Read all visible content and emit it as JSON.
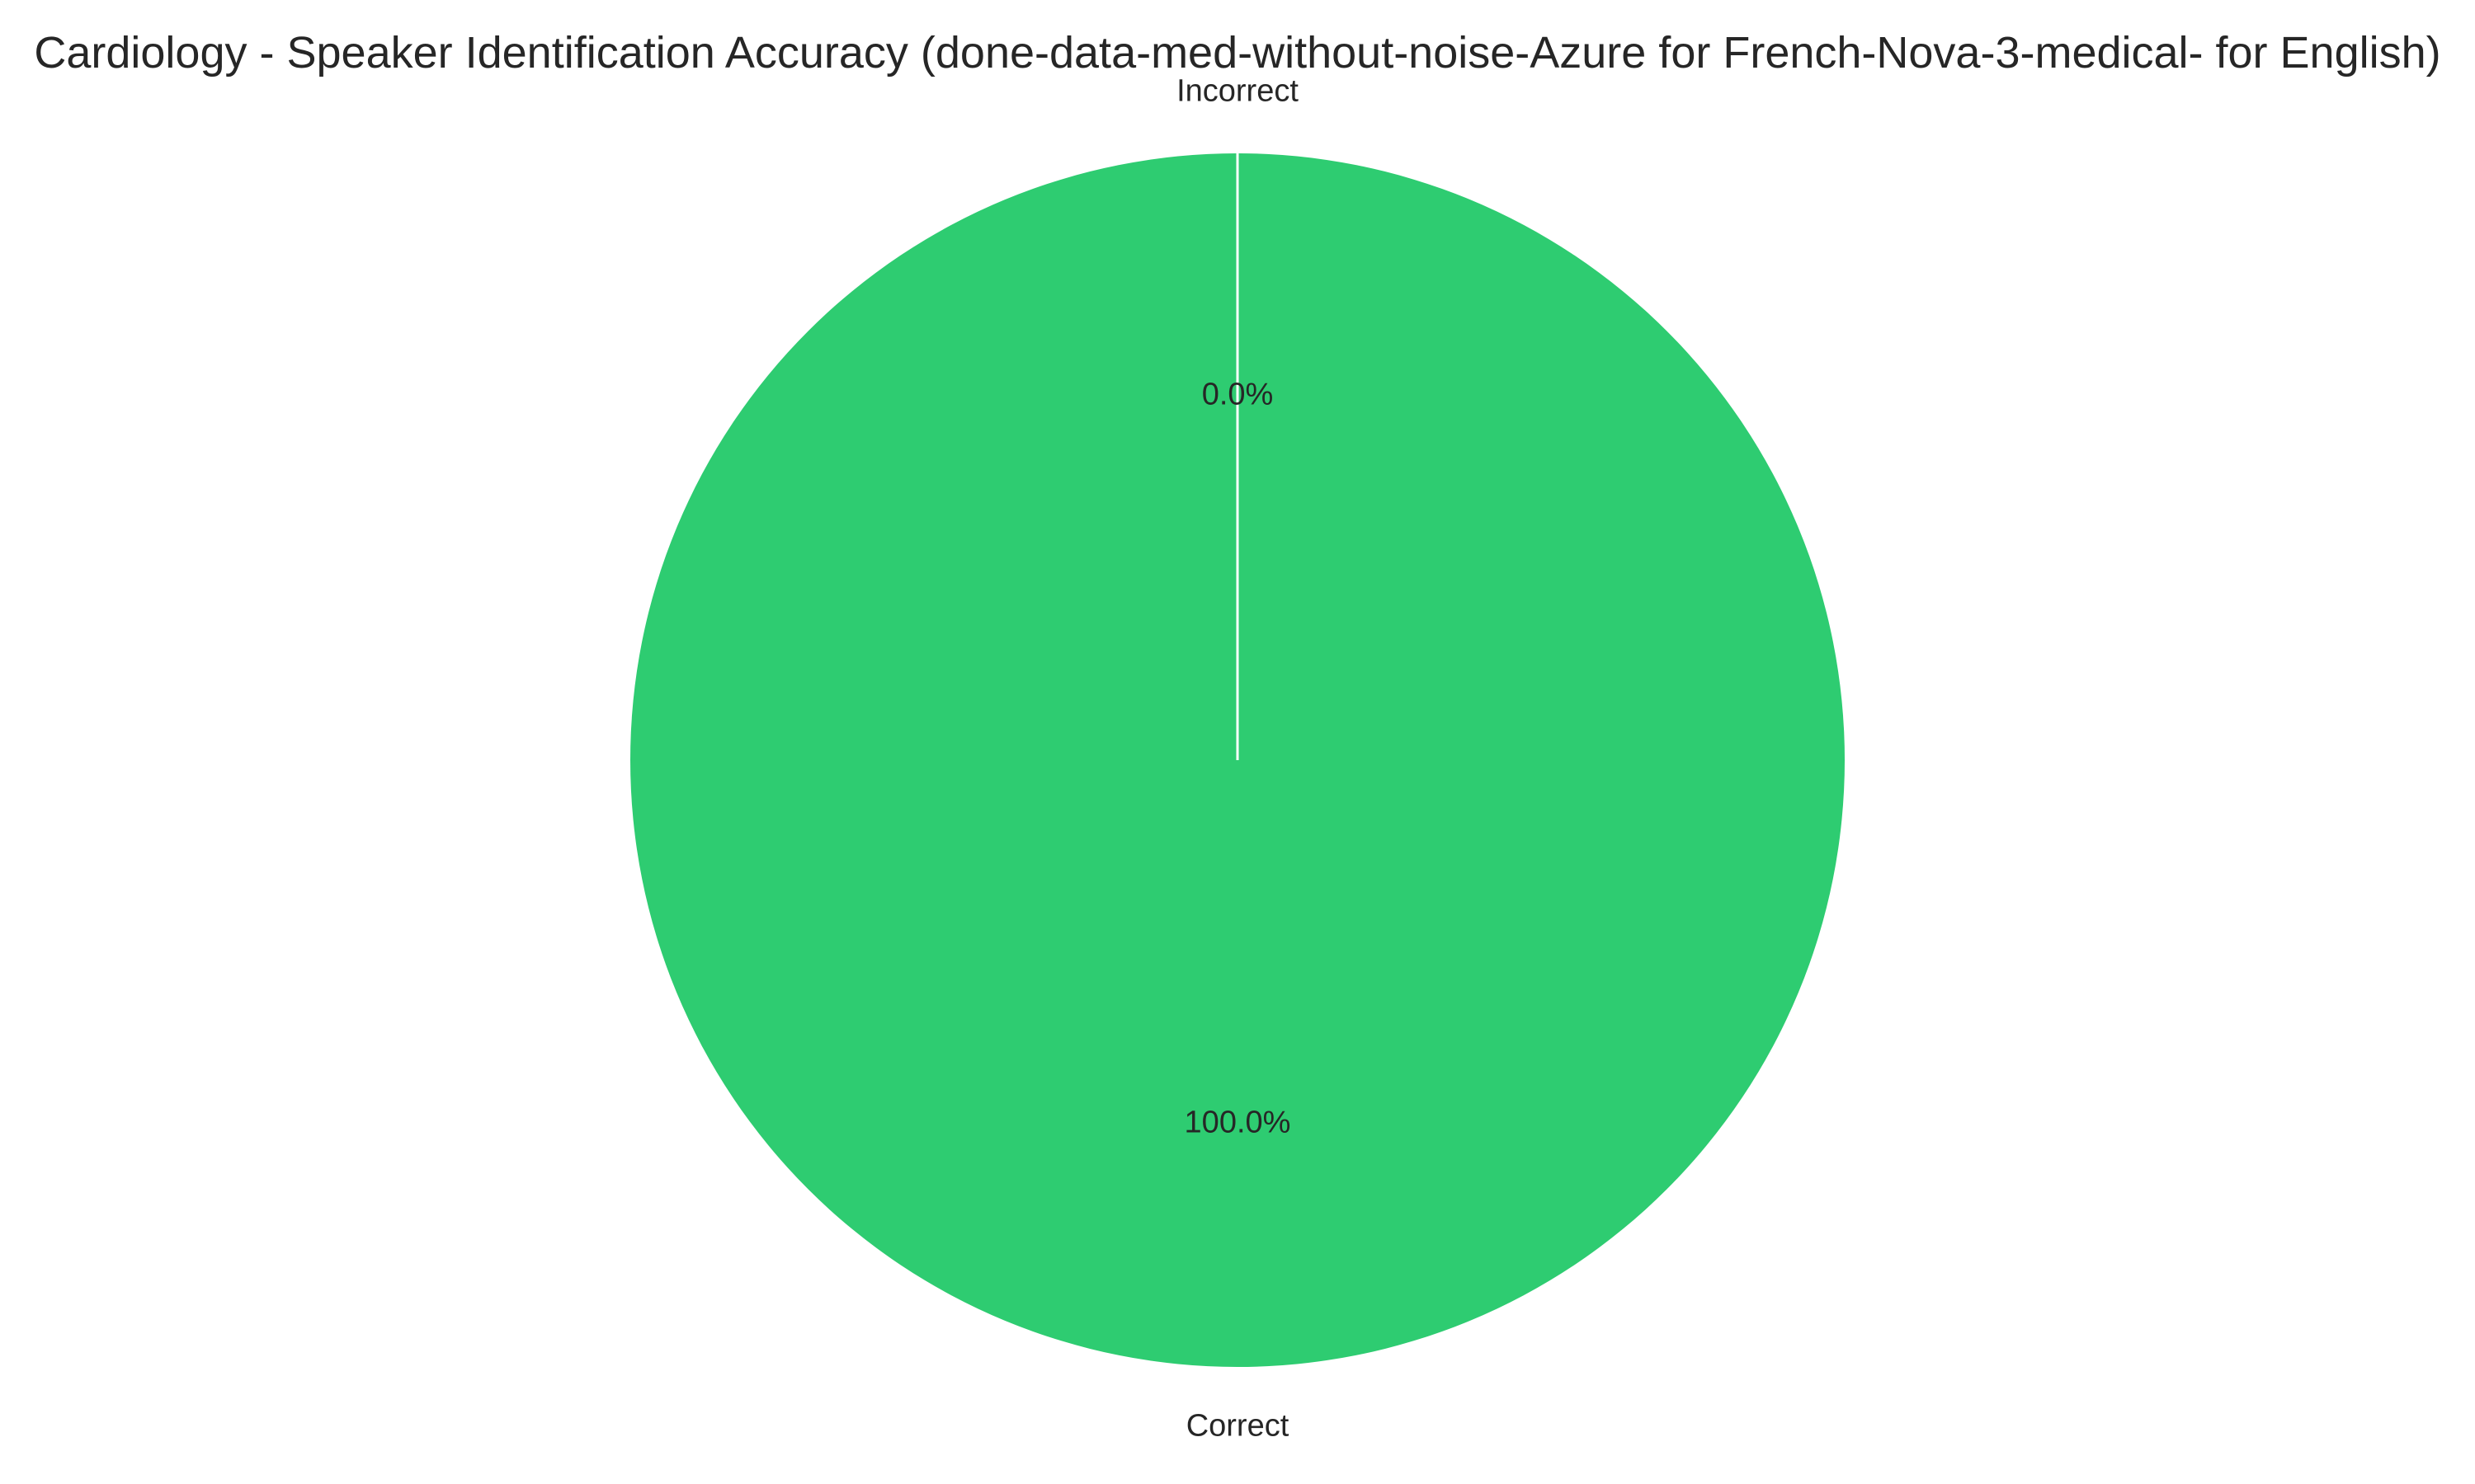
{
  "chart_data": {
    "type": "pie",
    "title": "Cardiology - Speaker Identification Accuracy (done-data-med-without-noise-Azure for French-Nova-3-medical- for English)",
    "categories": [
      "Incorrect",
      "Correct"
    ],
    "values": [
      0.0,
      100.0
    ],
    "percent_labels": [
      "0.0%",
      "100.0%"
    ],
    "colors": [
      "#e74c3c",
      "#2ecc71"
    ],
    "start_angle_deg": 90,
    "legend": "none"
  }
}
